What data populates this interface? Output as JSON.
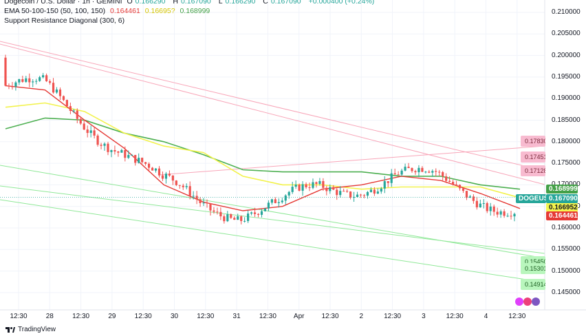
{
  "header": {
    "symbol_line": "Dogecoin / U.S. Dollar · 1h · GEMINI",
    "ohlc": [
      {
        "label": "O",
        "value": "0.166290"
      },
      {
        "label": "H",
        "value": "0.167090"
      },
      {
        "label": "L",
        "value": "0.166290"
      },
      {
        "label": "C",
        "value": "0.167090"
      }
    ],
    "change": "+0.000400 (+0.24%)",
    "ema_label": "EMA 50-100-150 (50, 100, 150)",
    "ema_values": [
      "0.164461",
      "0.16695?",
      "0.168999"
    ],
    "sr_label": "Support Resistance Diagonal (300, 6)"
  },
  "colors": {
    "up": "#26a69a",
    "down": "#ef5350",
    "ema50": "#e53935",
    "ema100": "#f5f54e",
    "ema150": "#4caf50",
    "resistance": "#f8a5b8",
    "support": "#7ddf86"
  },
  "y_axis": {
    "ticks": [
      "0.210000",
      "0.205000",
      "0.200000",
      "0.195000",
      "0.190000",
      "0.185000",
      "0.180000",
      "0.175000",
      "0.170000",
      "0.165000",
      "0.160000",
      "0.155000",
      "0.150000",
      "0.145000"
    ]
  },
  "x_axis": {
    "ticks": [
      "12:30",
      "28",
      "12:30",
      "29",
      "12:30",
      "30",
      "12:30",
      "31",
      "12:30",
      "Apr",
      "12:30",
      "2",
      "12:30",
      "3",
      "12:30",
      "4",
      "12:30"
    ]
  },
  "price_tags": {
    "ema150": "0.168999",
    "symbol": "DOGEUSD",
    "last": "0.167090",
    "ema100": "0.166952",
    "ema50": "0.164461"
  },
  "sr_tags": {
    "r1": "0.17830",
    "r2": "0.17451",
    "r3": "0.17128",
    "s1": "0.15450",
    "s2": "0.15301",
    "s3": "0.14914"
  },
  "footer": {
    "brand": "TradingView"
  },
  "chart_data": {
    "type": "candlestick",
    "symbol": "DOGEUSD",
    "timeframe": "1h",
    "ylim": [
      0.1435,
      0.2125
    ],
    "series_points": {
      "ema50": [
        0.193,
        0.192,
        0.185,
        0.1785,
        0.17,
        0.166,
        0.164,
        0.165,
        0.169,
        0.17,
        0.172,
        0.171,
        0.168,
        0.1645
      ],
      "ema100": [
        0.188,
        0.189,
        0.187,
        0.182,
        0.179,
        0.1775,
        0.172,
        0.17,
        0.17,
        0.169,
        0.1695,
        0.1695,
        0.1695,
        0.167
      ],
      "ema150": [
        0.183,
        0.1855,
        0.185,
        0.182,
        0.18,
        0.177,
        0.1735,
        0.173,
        0.173,
        0.173,
        0.172,
        0.172,
        0.17,
        0.169
      ]
    },
    "last_price": 0.16709
  }
}
